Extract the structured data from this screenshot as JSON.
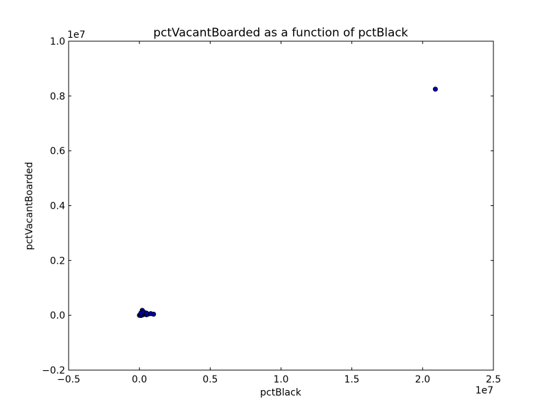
{
  "chart_data": {
    "type": "scatter",
    "title": "pctVacantBoarded as a function of pctBlack",
    "xlabel": "pctBlack",
    "ylabel": "pctVacantBoarded",
    "x_offset_label": "1e7",
    "y_offset_label": "1e7",
    "xlim": [
      -0.5,
      2.5
    ],
    "ylim": [
      -0.2,
      1.0
    ],
    "x_ticks": [
      -0.5,
      0.0,
      0.5,
      1.0,
      1.5,
      2.0,
      2.5
    ],
    "x_tick_labels": [
      "−0.5",
      "0.0",
      "0.5",
      "1.0",
      "1.5",
      "2.0",
      "2.5"
    ],
    "y_ticks": [
      -0.2,
      0.0,
      0.2,
      0.4,
      0.6,
      0.8,
      1.0
    ],
    "y_tick_labels": [
      "−0.2",
      "0.0",
      "0.2",
      "0.4",
      "0.6",
      "0.8",
      "1.0"
    ],
    "grid": false,
    "marker_color": "#0000aa",
    "points": [
      {
        "x": 2.09,
        "y": 0.825
      },
      {
        "x": 0.0,
        "y": 0.0
      },
      {
        "x": 0.005,
        "y": 0.002
      },
      {
        "x": 0.01,
        "y": -0.001
      },
      {
        "x": 0.015,
        "y": 0.004
      },
      {
        "x": 0.02,
        "y": 0.001
      },
      {
        "x": 0.025,
        "y": 0.006
      },
      {
        "x": 0.03,
        "y": 0.003
      },
      {
        "x": 0.04,
        "y": 0.005
      },
      {
        "x": 0.05,
        "y": 0.002
      },
      {
        "x": 0.06,
        "y": 0.004
      },
      {
        "x": 0.02,
        "y": 0.018
      },
      {
        "x": 0.018,
        "y": 0.012
      },
      {
        "x": 0.01,
        "y": 0.008
      },
      {
        "x": 0.035,
        "y": 0.01
      },
      {
        "x": 0.045,
        "y": 0.007
      },
      {
        "x": 0.03,
        "y": 0.012
      },
      {
        "x": 0.05,
        "y": 0.008
      },
      {
        "x": 0.08,
        "y": 0.006
      },
      {
        "x": 0.1,
        "y": 0.004
      }
    ]
  }
}
